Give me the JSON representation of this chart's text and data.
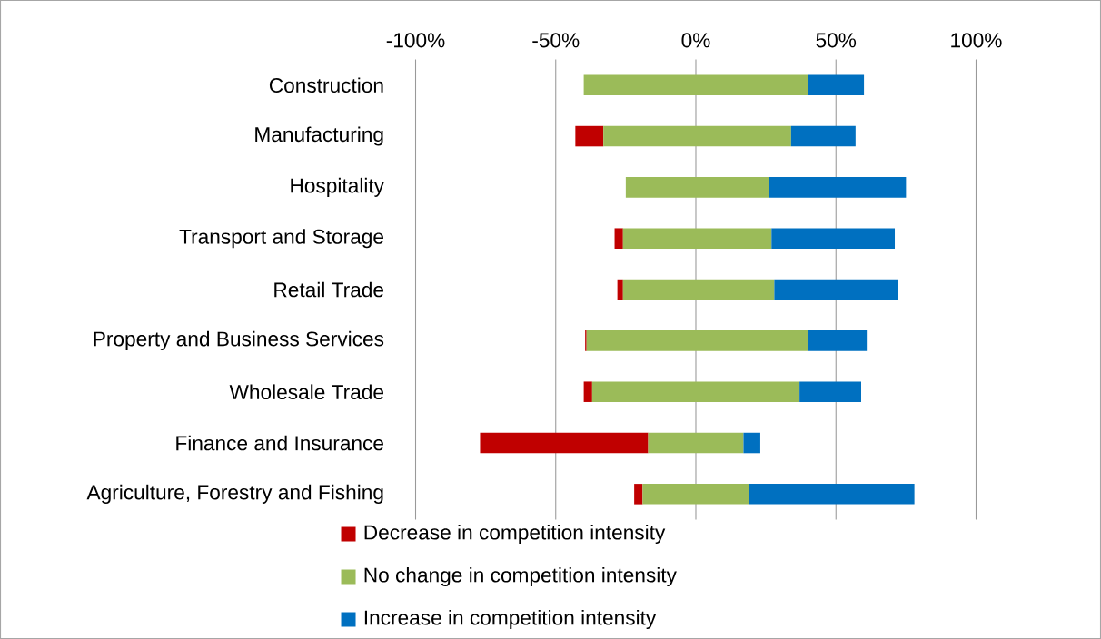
{
  "chart_data": {
    "type": "bar",
    "orientation": "horizontal",
    "categories": [
      "Construction",
      "Manufacturing",
      "Hospitality",
      "Transport and Storage",
      "Retail Trade",
      "Property and Business Services",
      "Wholesale Trade",
      "Finance and Insurance",
      "Agriculture, Forestry and Fishing"
    ],
    "series": [
      {
        "name": "Decrease in competition intensity",
        "color": "#c00000",
        "values": [
          null,
          10,
          null,
          3,
          2,
          0.5,
          3,
          60,
          3
        ],
        "base": [
          null,
          -43,
          null,
          -29,
          -28,
          -39.5,
          -40,
          -77,
          -22
        ]
      },
      {
        "name": "No change in competition intensity",
        "color": "#9bbb59",
        "values": [
          80,
          67,
          51,
          53,
          54,
          79,
          74,
          34,
          38
        ],
        "base": [
          -40,
          -33,
          -25,
          -26,
          -26,
          -39,
          -37,
          -17,
          -19
        ]
      },
      {
        "name": "Increase in competition intensity",
        "color": "#0070c0",
        "values": [
          20,
          23,
          49,
          44,
          44,
          21,
          22,
          6,
          59
        ],
        "base": [
          40,
          34,
          26,
          27,
          28,
          40,
          37,
          17,
          19
        ]
      }
    ],
    "xlim": [
      -100,
      100
    ],
    "xticks": [
      {
        "value": -100,
        "label": "-100%"
      },
      {
        "value": -50,
        "label": "-50%"
      },
      {
        "value": 0,
        "label": "0%"
      },
      {
        "value": 50,
        "label": "50%"
      },
      {
        "value": 100,
        "label": "100%"
      }
    ],
    "grid": "x",
    "legend": "bottom"
  }
}
